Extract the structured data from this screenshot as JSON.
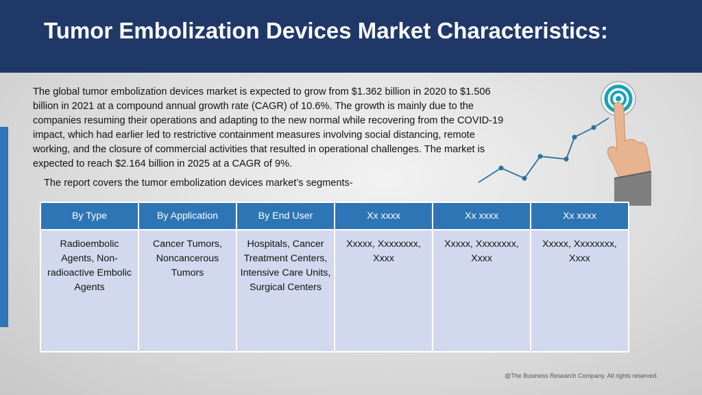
{
  "header": {
    "title": "Tumor Embolization Devices Market Characteristics:"
  },
  "body": {
    "paragraph": "The global tumor embolization devices market is expected to grow from $1.362 billion in 2020 to $1.506 billion in 2021 at a compound annual growth rate (CAGR) of 10.6%. The growth is mainly due to the companies resuming their operations and adapting to the new normal while recovering from the COVID-19 impact, which had earlier led to restrictive containment measures involving social distancing, remote working, and the closure of commercial activities that resulted in operational challenges. The market is expected to reach $2.164 billion in 2025 at a CAGR of 9%.",
    "segments_intro": "The report covers the tumor embolization devices market’s segments-"
  },
  "table": {
    "headers": [
      "By Type",
      "By Application",
      "By End User",
      "Xx xxxx",
      "Xx xxxx",
      "Xx xxxx"
    ],
    "cells": [
      "Radioembolic Agents, Non-radioactive Embolic Agents",
      "Cancer Tumors, Noncancerous Tumors",
      "Hospitals, Cancer Treatment Centers, Intensive Care Units, Surgical Centers",
      "Xxxxx, Xxxxxxxx, Xxxx",
      "Xxxxx, Xxxxxxxx, Xxxx",
      "Xxxxx, Xxxxxxxx, Xxxx"
    ]
  },
  "graphic": {
    "icon": "hand-pointing-target-growth-icon",
    "target_color": "#14a3b8",
    "line_color": "#2b6f9a"
  },
  "footer": {
    "copyright": "@The Business Research Company. All rights reserved."
  },
  "colors": {
    "header_bg": "#1f3868",
    "table_header_bg": "#2e75b6",
    "table_cell_bg": "#d2d9ee",
    "accent_bar": "#2e75b6"
  }
}
